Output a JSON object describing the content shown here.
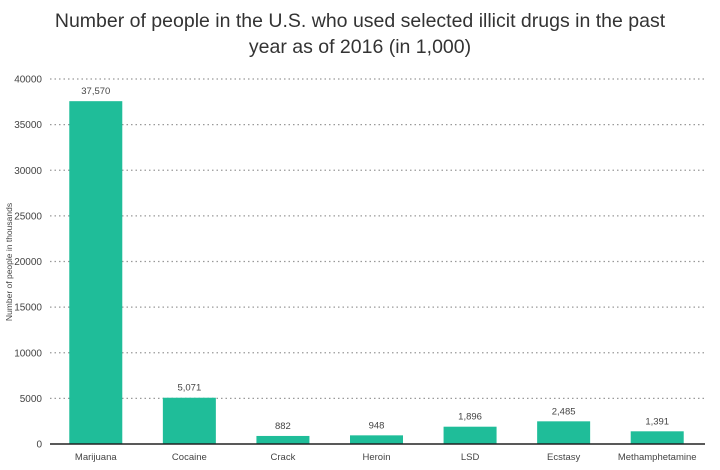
{
  "chart_data": {
    "type": "bar",
    "title_lines": [
      "Number of people in the U.S. who used selected illicit drugs in the past",
      "year as of 2016 (in 1,000)"
    ],
    "xlabel": "",
    "ylabel": "Number of people in thousands",
    "categories": [
      "Marijuana",
      "Cocaine",
      "Crack",
      "Heroin",
      "LSD",
      "Ecstasy",
      "Methamphetamine"
    ],
    "values": [
      37570,
      5071,
      882,
      948,
      1896,
      2485,
      1391
    ],
    "value_labels": [
      "37,570",
      "5,071",
      "882",
      "948",
      "1,896",
      "2,485",
      "1,391"
    ],
    "ylim": [
      0,
      40000
    ],
    "yticks": [
      0,
      5000,
      10000,
      15000,
      20000,
      25000,
      30000,
      35000,
      40000
    ],
    "grid": true,
    "bar_color": "#1fbd99"
  }
}
